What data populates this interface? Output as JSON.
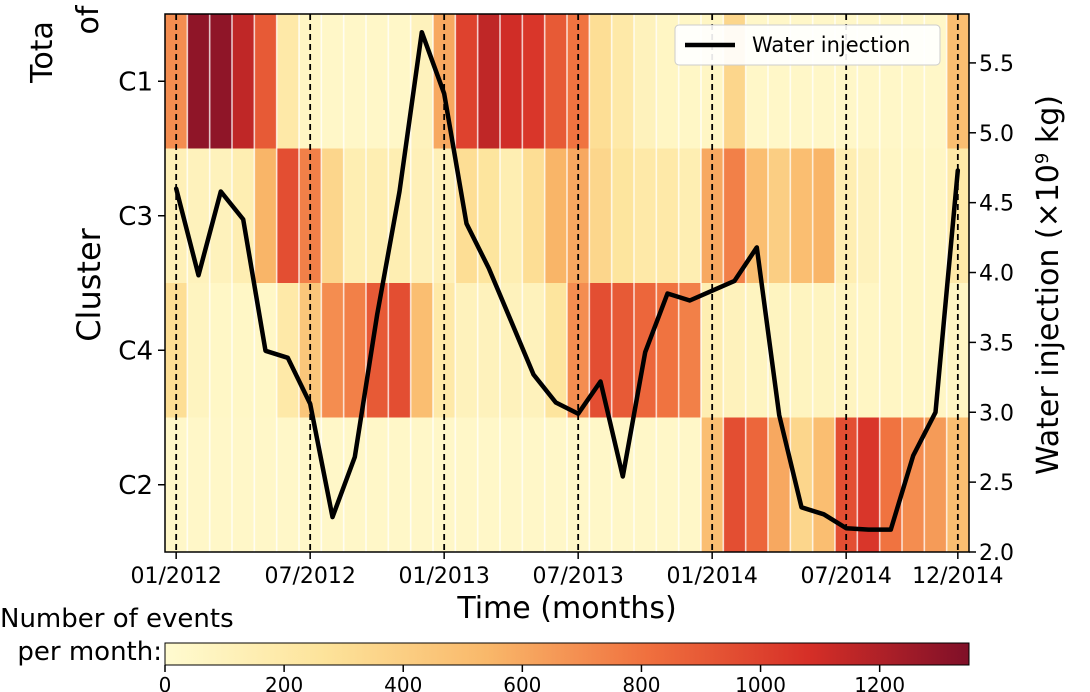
{
  "chart_data": {
    "type": "heatmap",
    "y_label_partial_top": "Tota",
    "y_label_partial_bottom": "of",
    "ylabel": "Cluster",
    "xlabel": "Time (months)",
    "y2label_main": "Water injection (×10",
    "y2label_exp": "9",
    "y2label_unit": " kg)",
    "clusters": [
      "C1",
      "C3",
      "C4",
      "C2"
    ],
    "x_ticks": [
      {
        "label": "01/2012",
        "month": 0
      },
      {
        "label": "07/2012",
        "month": 6
      },
      {
        "label": "01/2013",
        "month": 12
      },
      {
        "label": "07/2013",
        "month": 18
      },
      {
        "label": "01/2014",
        "month": 24
      },
      {
        "label": "07/2014",
        "month": 30
      },
      {
        "label": "12/2014",
        "month": 35
      }
    ],
    "y2_ticks": [
      "2.0",
      "2.5",
      "3.0",
      "3.5",
      "4.0",
      "4.5",
      "5.0",
      "5.5"
    ],
    "y2lim": [
      2.0,
      5.85
    ],
    "event_counts": {
      "C1": [
        700,
        1300,
        1300,
        1150,
        900,
        200,
        60,
        40,
        40,
        40,
        40,
        100,
        600,
        1000,
        1150,
        1100,
        1050,
        900,
        800,
        300,
        200,
        100,
        60,
        50,
        60,
        350,
        40,
        40,
        40,
        40,
        40,
        40,
        40,
        40,
        40,
        500
      ],
      "C3": [
        120,
        100,
        100,
        150,
        550,
        950,
        750,
        350,
        150,
        150,
        150,
        120,
        120,
        300,
        250,
        150,
        300,
        550,
        600,
        350,
        250,
        200,
        200,
        150,
        600,
        750,
        500,
        400,
        500,
        550,
        150,
        100,
        60,
        60,
        60,
        200
      ],
      "C4": [
        300,
        80,
        50,
        50,
        50,
        200,
        450,
        700,
        750,
        900,
        950,
        500,
        200,
        100,
        100,
        100,
        100,
        250,
        700,
        950,
        900,
        850,
        800,
        750,
        150,
        100,
        80,
        80,
        80,
        80,
        80,
        60,
        60,
        60,
        60,
        60
      ],
      "C2": [
        40,
        40,
        40,
        40,
        40,
        40,
        40,
        40,
        40,
        40,
        40,
        40,
        40,
        40,
        40,
        40,
        40,
        40,
        40,
        40,
        40,
        40,
        40,
        40,
        500,
        950,
        850,
        600,
        350,
        500,
        950,
        1050,
        800,
        700,
        650,
        500
      ]
    },
    "series": [
      {
        "name": "Water injection",
        "x": [
          0,
          1,
          2,
          3,
          4,
          5,
          6,
          7,
          8,
          9,
          10,
          11,
          12,
          13,
          14,
          15,
          16,
          17,
          18,
          19,
          20,
          21,
          22,
          23,
          24,
          25,
          26,
          27,
          28,
          29,
          30,
          31,
          32,
          33,
          34,
          35
        ],
        "values": [
          4.6,
          3.98,
          4.58,
          4.38,
          3.44,
          3.39,
          3.06,
          2.25,
          2.68,
          3.7,
          4.58,
          5.72,
          5.28,
          4.35,
          4.03,
          3.65,
          3.27,
          3.07,
          2.99,
          3.22,
          2.54,
          3.43,
          3.85,
          3.8,
          3.87,
          3.94,
          4.18,
          2.98,
          2.32,
          2.27,
          2.17,
          2.16,
          2.16,
          2.69,
          3.0,
          4.73
        ]
      }
    ],
    "legend": {
      "label": "Water injection",
      "placement": "top-right"
    },
    "colorbar": {
      "label_line1": "Number of events",
      "label_line2": "per month:",
      "ticks": [
        "0",
        "200",
        "400",
        "600",
        "800",
        "1000",
        "1200"
      ],
      "range": [
        0,
        1350
      ]
    }
  },
  "colors": {
    "low": "#fdf5c0",
    "mid": "#f4a05a",
    "high": "#d62f27",
    "max": "#7f0f28",
    "line": "#000000",
    "col_separator": "#ffffff"
  }
}
